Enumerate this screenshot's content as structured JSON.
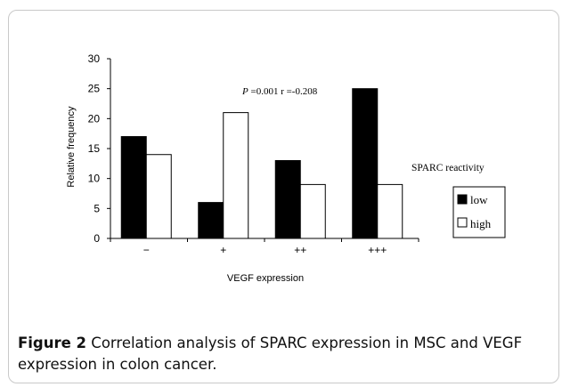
{
  "chart_data": {
    "type": "bar",
    "categories": [
      "−",
      "+",
      "++",
      "+++"
    ],
    "series": [
      {
        "name": "low",
        "values": [
          17,
          6,
          13,
          25
        ],
        "color": "#000000"
      },
      {
        "name": "high",
        "values": [
          14,
          21,
          9,
          9
        ],
        "color": "#ffffff"
      }
    ],
    "ylim": [
      0,
      30
    ],
    "yticks": [
      0,
      5,
      10,
      15,
      20,
      25,
      30
    ],
    "xlabel": "VEGF  expression",
    "ylabel": "Relative  frequency",
    "legend_title": "SPARC reactivity",
    "legend_position": "right",
    "annotation": {
      "p_symbol": "P",
      "text": " =0.001  r =-0.208"
    },
    "grid": false
  },
  "caption": {
    "label": "Figure 2",
    "text": " Correlation analysis of SPARC expression in MSC and VEGF expression in colon cancer",
    "end": "."
  }
}
